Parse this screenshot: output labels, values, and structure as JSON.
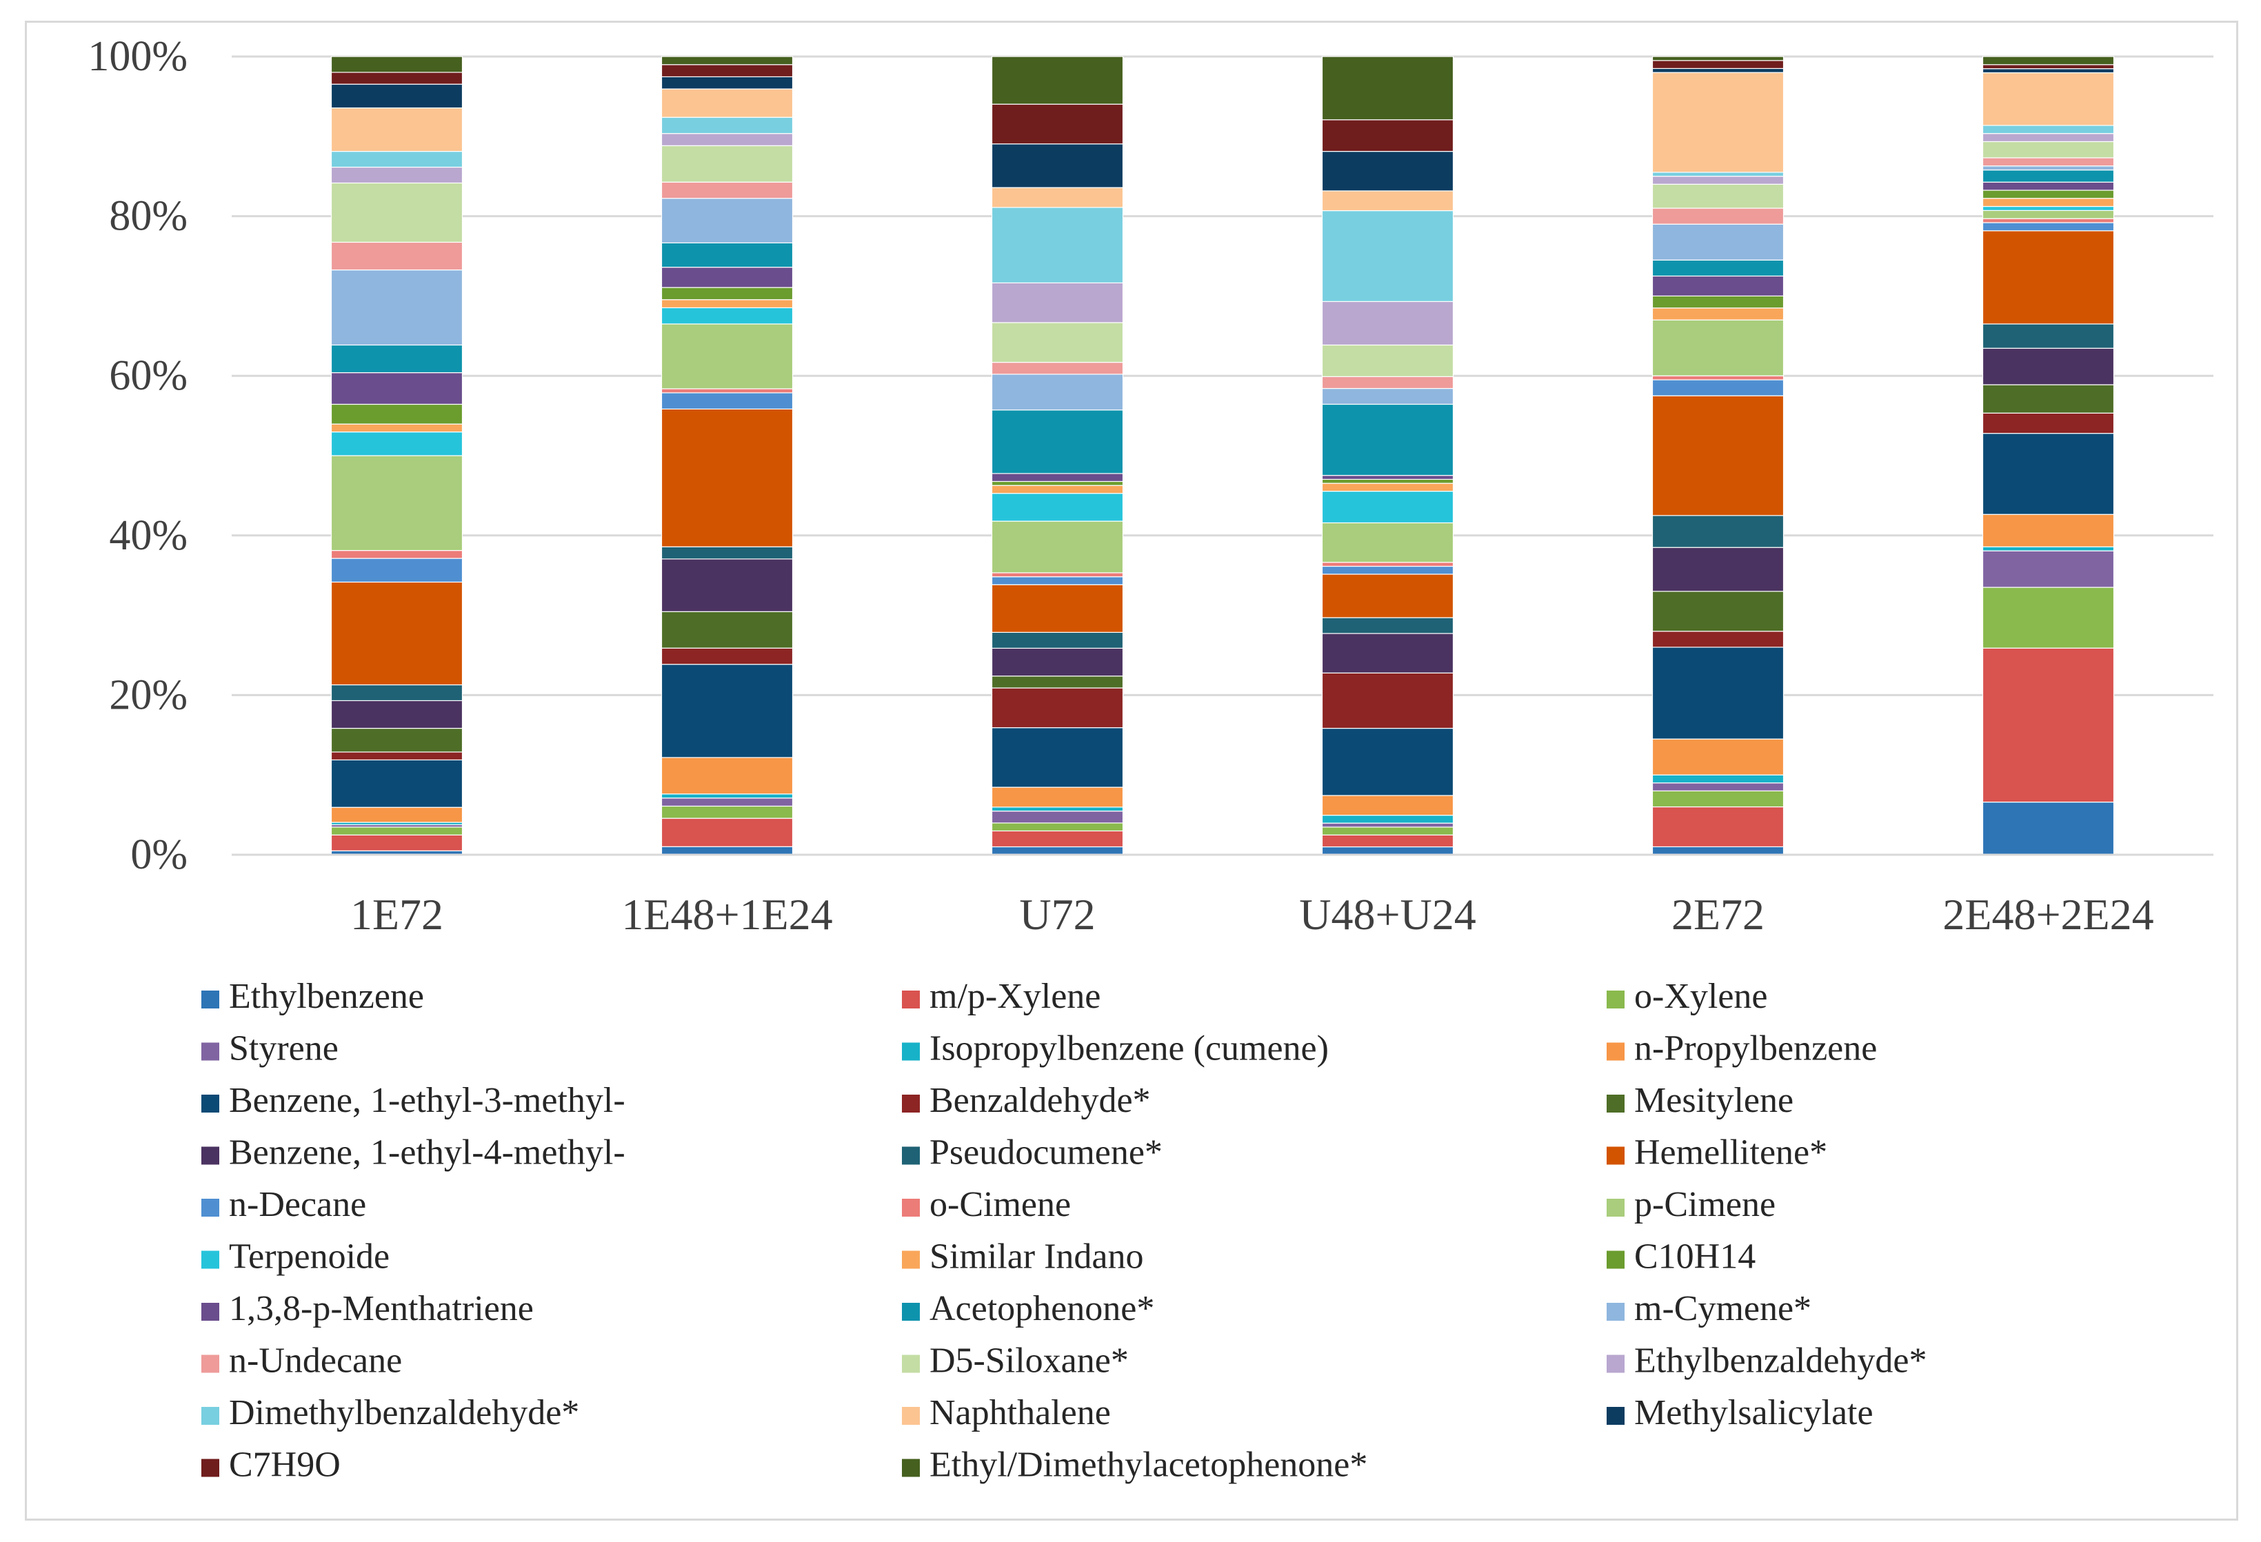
{
  "chart_data": {
    "type": "bar",
    "stacked": "percent",
    "title": "",
    "xlabel": "",
    "ylabel": "",
    "ylim": [
      0,
      100
    ],
    "yticks": [
      "0%",
      "20%",
      "40%",
      "60%",
      "80%",
      "100%"
    ],
    "grid": true,
    "legend_position": "bottom",
    "categories": [
      "1E72",
      "1E48+1E24",
      "U72",
      "U48+U24",
      "2E72",
      "2E48+2E24"
    ],
    "series": [
      {
        "name": "Ethylbenzene",
        "color": "#2e75b6",
        "values": [
          0.5,
          1.0,
          1.0,
          1.0,
          1.0,
          6.5
        ]
      },
      {
        "name": "m/p-Xylene",
        "color": "#d9534f",
        "values": [
          2.0,
          3.5,
          2.0,
          1.5,
          5.0,
          19.0
        ]
      },
      {
        "name": "o-Xylene",
        "color": "#8ab94d",
        "values": [
          1.0,
          1.5,
          1.0,
          1.0,
          2.0,
          7.5
        ]
      },
      {
        "name": "Styrene",
        "color": "#8064a2",
        "values": [
          0.3,
          1.0,
          1.5,
          0.5,
          1.0,
          4.5
        ]
      },
      {
        "name": "Isopropylbenzene (cumene)",
        "color": "#17b2c8",
        "values": [
          0.3,
          0.5,
          0.5,
          1.0,
          1.0,
          0.5
        ]
      },
      {
        "name": "n-Propylbenzene",
        "color": "#f79646",
        "values": [
          1.9,
          4.5,
          2.5,
          2.5,
          4.5,
          4.0
        ]
      },
      {
        "name": "Benzene, 1-ethyl-3-methyl-",
        "color": "#0b4a75",
        "values": [
          6.0,
          11.5,
          7.5,
          8.5,
          11.5,
          10.0
        ]
      },
      {
        "name": "Benzaldehyde*",
        "color": "#8c2524",
        "values": [
          1.0,
          2.0,
          5.0,
          7.0,
          2.0,
          2.5
        ]
      },
      {
        "name": "Mesitylene",
        "color": "#4e6e27",
        "values": [
          3.0,
          4.5,
          1.5,
          0.0,
          5.0,
          3.5
        ]
      },
      {
        "name": "Benzene, 1-ethyl-4-methyl-",
        "color": "#4b3361",
        "values": [
          3.5,
          6.5,
          3.5,
          5.0,
          5.5,
          4.5
        ]
      },
      {
        "name": "Pseudocumene*",
        "color": "#1f6275",
        "values": [
          2.0,
          1.5,
          2.0,
          2.0,
          4.0,
          3.0
        ]
      },
      {
        "name": "Hemellitene*",
        "color": "#d35400",
        "values": [
          13.0,
          17.0,
          6.0,
          5.5,
          15.0,
          11.5
        ]
      },
      {
        "name": "n-Decane",
        "color": "#4f8fd1",
        "values": [
          3.0,
          2.0,
          1.0,
          1.0,
          2.0,
          1.0
        ]
      },
      {
        "name": "o-Cimene",
        "color": "#ec7c78",
        "values": [
          1.0,
          0.5,
          0.5,
          0.5,
          0.5,
          0.5
        ]
      },
      {
        "name": "p-Cimene",
        "color": "#a9cd7c",
        "values": [
          12.0,
          8.0,
          6.5,
          5.0,
          7.0,
          1.0
        ]
      },
      {
        "name": "Terpenoide",
        "color": "#26c4db",
        "values": [
          3.0,
          2.0,
          3.5,
          4.0,
          0.0,
          0.5
        ]
      },
      {
        "name": "Similar Indano",
        "color": "#f9a65a",
        "values": [
          1.0,
          1.0,
          1.0,
          1.0,
          1.5,
          1.0
        ]
      },
      {
        "name": "C10H14",
        "color": "#6b9c2e",
        "values": [
          2.5,
          1.5,
          0.5,
          0.5,
          1.5,
          1.0
        ]
      },
      {
        "name": "1,3,8-p-Menthatriene",
        "color": "#6a4d8c",
        "values": [
          4.0,
          2.5,
          1.0,
          0.5,
          2.5,
          1.0
        ]
      },
      {
        "name": "Acetophenone*",
        "color": "#0e93ad",
        "values": [
          3.5,
          3.0,
          8.0,
          9.0,
          2.0,
          1.5
        ]
      },
      {
        "name": "m-Cymene*",
        "color": "#8fb6de",
        "values": [
          9.5,
          5.5,
          4.5,
          2.0,
          4.5,
          0.5
        ]
      },
      {
        "name": "n-Undecane",
        "color": "#ee9b9a",
        "values": [
          3.5,
          2.0,
          1.5,
          1.5,
          2.0,
          1.0
        ]
      },
      {
        "name": "D5-Siloxane*",
        "color": "#c4dda4",
        "values": [
          7.5,
          4.5,
          5.0,
          4.0,
          3.0,
          2.0
        ]
      },
      {
        "name": "Ethylbenzaldehyde*",
        "color": "#b9a7cf",
        "values": [
          2.0,
          1.5,
          5.0,
          5.5,
          1.0,
          1.0
        ]
      },
      {
        "name": "Dimethylbenzaldehyde*",
        "color": "#78cfe0",
        "values": [
          2.0,
          2.0,
          9.5,
          11.5,
          0.5,
          1.0
        ]
      },
      {
        "name": "Naphthalene",
        "color": "#fcc491",
        "values": [
          5.5,
          3.5,
          2.5,
          2.5,
          12.5,
          6.5
        ]
      },
      {
        "name": "Methylsalicylate",
        "color": "#0d3c61",
        "values": [
          3.0,
          1.5,
          5.5,
          5.0,
          0.5,
          0.5
        ]
      },
      {
        "name": "C7H9O",
        "color": "#701d1d",
        "values": [
          1.5,
          1.5,
          5.0,
          4.0,
          1.0,
          0.5
        ]
      },
      {
        "name": "Ethyl/Dimethylacetophenone*",
        "color": "#46601f",
        "values": [
          2.0,
          1.0,
          6.0,
          8.0,
          0.5,
          1.0
        ]
      }
    ]
  }
}
